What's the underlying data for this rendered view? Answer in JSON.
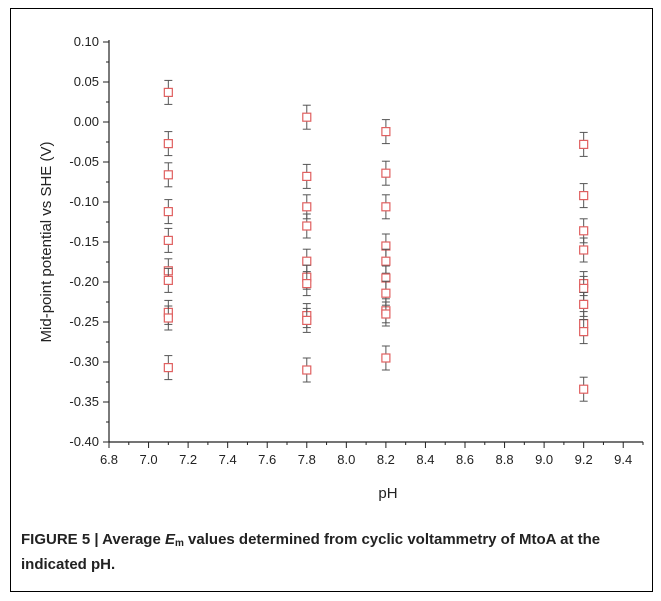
{
  "chart_data": {
    "type": "scatter",
    "title": "",
    "xlabel": "pH",
    "ylabel": "Mid-point potential vs SHE (V)",
    "xlim": [
      6.8,
      9.5
    ],
    "ylim": [
      -0.4,
      0.1
    ],
    "xticks": [
      "6.8",
      "7.0",
      "7.2",
      "7.4",
      "7.6",
      "7.8",
      "8.0",
      "8.2",
      "8.4",
      "8.6",
      "8.8",
      "9.0",
      "9.2",
      "9.4"
    ],
    "yticks": [
      "0.10",
      "0.05",
      "0.00",
      "-0.05",
      "-0.10",
      "-0.15",
      "-0.20",
      "-0.25",
      "-0.30",
      "-0.35",
      "-0.40"
    ],
    "error_bar": 0.015,
    "marker_color": "#e06060",
    "errorbar_color": "#555555",
    "points": [
      {
        "x": 7.1,
        "y": 0.037
      },
      {
        "x": 7.1,
        "y": -0.027
      },
      {
        "x": 7.1,
        "y": -0.066
      },
      {
        "x": 7.1,
        "y": -0.112
      },
      {
        "x": 7.1,
        "y": -0.148
      },
      {
        "x": 7.1,
        "y": -0.186
      },
      {
        "x": 7.1,
        "y": -0.198
      },
      {
        "x": 7.1,
        "y": -0.238
      },
      {
        "x": 7.1,
        "y": -0.245
      },
      {
        "x": 7.1,
        "y": -0.307
      },
      {
        "x": 7.8,
        "y": 0.006
      },
      {
        "x": 7.8,
        "y": -0.068
      },
      {
        "x": 7.8,
        "y": -0.106
      },
      {
        "x": 7.8,
        "y": -0.13
      },
      {
        "x": 7.8,
        "y": -0.174
      },
      {
        "x": 7.8,
        "y": -0.194
      },
      {
        "x": 7.8,
        "y": -0.202
      },
      {
        "x": 7.8,
        "y": -0.242
      },
      {
        "x": 7.8,
        "y": -0.248
      },
      {
        "x": 7.8,
        "y": -0.31
      },
      {
        "x": 8.2,
        "y": -0.012
      },
      {
        "x": 8.2,
        "y": -0.064
      },
      {
        "x": 8.2,
        "y": -0.106
      },
      {
        "x": 8.2,
        "y": -0.155
      },
      {
        "x": 8.2,
        "y": -0.174
      },
      {
        "x": 8.2,
        "y": -0.195
      },
      {
        "x": 8.2,
        "y": -0.214
      },
      {
        "x": 8.2,
        "y": -0.236
      },
      {
        "x": 8.2,
        "y": -0.24
      },
      {
        "x": 8.2,
        "y": -0.295
      },
      {
        "x": 9.2,
        "y": -0.028
      },
      {
        "x": 9.2,
        "y": -0.092
      },
      {
        "x": 9.2,
        "y": -0.136
      },
      {
        "x": 9.2,
        "y": -0.16
      },
      {
        "x": 9.2,
        "y": -0.202
      },
      {
        "x": 9.2,
        "y": -0.208
      },
      {
        "x": 9.2,
        "y": -0.228
      },
      {
        "x": 9.2,
        "y": -0.252
      },
      {
        "x": 9.2,
        "y": -0.262
      },
      {
        "x": 9.2,
        "y": -0.334
      }
    ]
  },
  "caption": {
    "prefix": "FIGURE 5 | Average ",
    "symbol": "E",
    "subscript": "m",
    "suffix": " values determined from cyclic voltammetry of MtoA at the indicated pH."
  }
}
